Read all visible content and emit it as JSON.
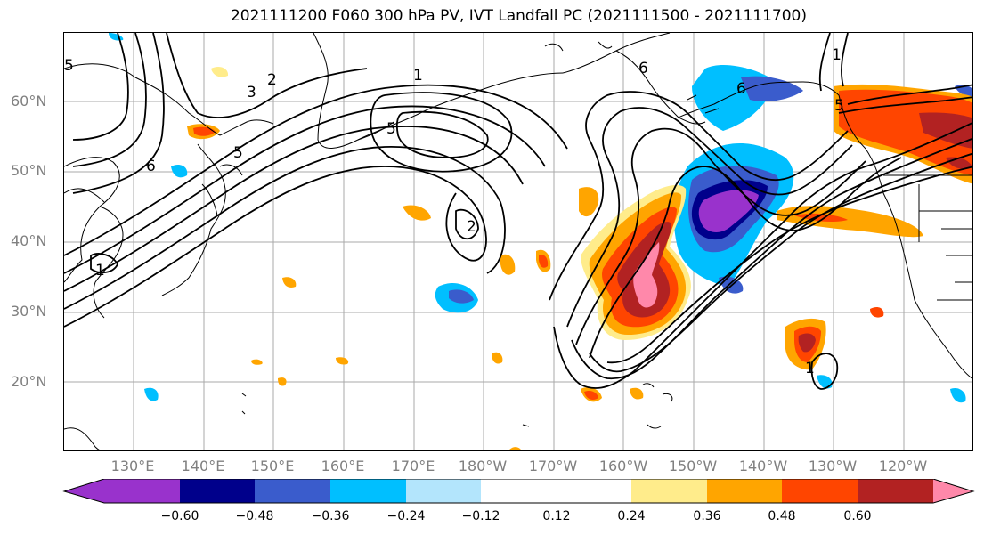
{
  "title": "2021111200 F060 300 hPa PV, IVT Landfall PC (2021111500 - 2021111700)",
  "lat_labels": [
    "60°N",
    "50°N",
    "40°N",
    "30°N",
    "20°N"
  ],
  "lon_labels": [
    "130°E",
    "140°E",
    "150°E",
    "160°E",
    "170°E",
    "180°W",
    "170°W",
    "160°W",
    "150°W",
    "140°W",
    "130°W",
    "120°W"
  ],
  "colorbar": {
    "colors": [
      "#9932cc",
      "#00008b",
      "#3a5ccc",
      "#00bfff",
      "#b3e5fc",
      "#ffffff",
      "#ffffff",
      "#ffec8b",
      "#ffa500",
      "#ff4500",
      "#b22222",
      "#ff88aa"
    ],
    "tick_labels": [
      "−0.60",
      "−0.48",
      "−0.36",
      "−0.24",
      "−0.12",
      "0.12",
      "0.24",
      "0.36",
      "0.48",
      "0.60"
    ]
  },
  "contour_labels": [
    "1",
    "2",
    "3",
    "5",
    "6",
    "5",
    "1",
    "6",
    "6",
    "5",
    "2",
    "1",
    "1",
    "5"
  ]
}
